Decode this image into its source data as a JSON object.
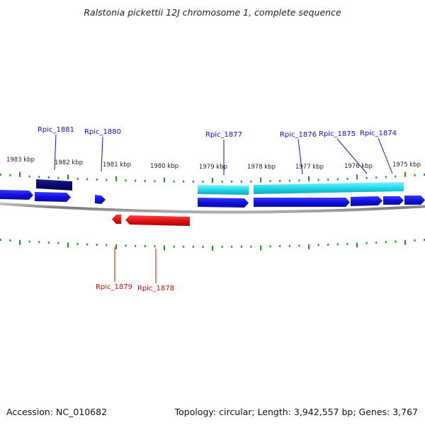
{
  "title": "Ralstonia pickettii 12J chromosome 1, complete sequence",
  "footer": {
    "accession": "Accession: NC_010682",
    "summary": "Topology: circular; Length: 3,942,557 bp; Genes: 3,767"
  },
  "colors": {
    "tick": "#2e8b2e",
    "forward_gene": "#1010e0",
    "forward_highlight": "#0a0a70",
    "rna_gene": "#20d8e8",
    "reverse_gene": "#e01010",
    "forward_label": "#1010c0",
    "reverse_label": "#c01010",
    "backbone": "#888888"
  },
  "scale_labels": [
    "1983 kbp",
    "1982 kbp",
    "1981 kbp",
    "1980 kbp",
    "1979 kbp",
    "1978 kbp",
    "1977 kbp",
    "1976 kbp",
    "1975 kbp"
  ],
  "forward_genes": [
    "Rpic_1881",
    "Rpic_1880",
    "Rpic_1877",
    "Rpic_1876",
    "Rpic_1875",
    "Rpic_1874"
  ],
  "reverse_genes": [
    "Rpic_1879",
    "Rpic_1878"
  ]
}
